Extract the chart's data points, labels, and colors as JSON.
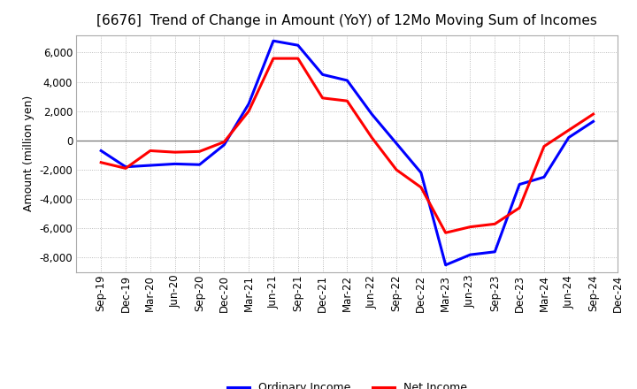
{
  "title": "[6676]  Trend of Change in Amount (YoY) of 12Mo Moving Sum of Incomes",
  "ylabel": "Amount (million yen)",
  "ylim": [
    -9000,
    7200
  ],
  "yticks": [
    -8000,
    -6000,
    -4000,
    -2000,
    0,
    2000,
    4000,
    6000
  ],
  "x_labels": [
    "Sep-19",
    "Dec-19",
    "Mar-20",
    "Jun-20",
    "Sep-20",
    "Dec-20",
    "Mar-21",
    "Jun-21",
    "Sep-21",
    "Dec-21",
    "Mar-22",
    "Jun-22",
    "Sep-22",
    "Dec-22",
    "Mar-23",
    "Jun-23",
    "Sep-23",
    "Dec-23",
    "Mar-24",
    "Jun-24",
    "Sep-24",
    "Dec-24"
  ],
  "ordinary_income": [
    -700,
    -1800,
    -1700,
    -1600,
    -1650,
    -300,
    2500,
    6800,
    6500,
    4500,
    4100,
    1800,
    -200,
    -2200,
    -8500,
    -7800,
    -7600,
    -3000,
    -2500,
    200,
    1300,
    null
  ],
  "net_income": [
    -1500,
    -1900,
    -700,
    -800,
    -750,
    -100,
    2000,
    5600,
    5600,
    2900,
    2700,
    200,
    -2000,
    -3200,
    -6300,
    -5900,
    -5700,
    -4600,
    -400,
    700,
    1800,
    null
  ],
  "ordinary_color": "#0000FF",
  "net_color": "#FF0000",
  "line_width": 2.2,
  "background_color": "#FFFFFF",
  "plot_bg_color": "#FFFFFF",
  "grid_color": "#AAAAAA",
  "zero_line_color": "#777777",
  "title_fontsize": 11,
  "ylabel_fontsize": 9,
  "tick_fontsize": 8.5,
  "legend_fontsize": 9
}
